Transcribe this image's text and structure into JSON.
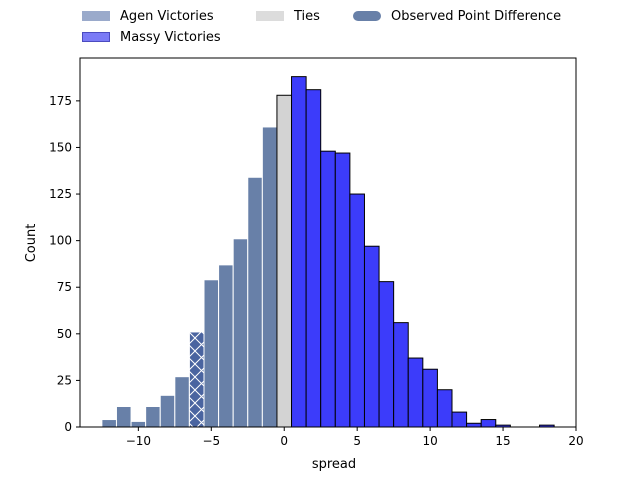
{
  "chart_data": {
    "type": "bar",
    "xlabel": "spread",
    "ylabel": "Count",
    "xlim": [
      -14,
      20
    ],
    "ylim": [
      0,
      198
    ],
    "xticks": [
      -10,
      -5,
      0,
      5,
      10,
      15,
      20
    ],
    "yticks": [
      0,
      25,
      50,
      75,
      100,
      125,
      150,
      175
    ],
    "bin_width": 1,
    "series": [
      {
        "name": "Agen Victories",
        "color": "#6880a8",
        "bins": [
          {
            "x0": -12.5,
            "x1": -11.5,
            "value": 4
          },
          {
            "x0": -11.5,
            "x1": -10.5,
            "value": 11
          },
          {
            "x0": -10.5,
            "x1": -9.5,
            "value": 3
          },
          {
            "x0": -9.5,
            "x1": -8.5,
            "value": 11
          },
          {
            "x0": -8.5,
            "x1": -7.5,
            "value": 17
          },
          {
            "x0": -7.5,
            "x1": -6.5,
            "value": 27
          },
          {
            "x0": -6.5,
            "x1": -5.5,
            "value": 51
          },
          {
            "x0": -5.5,
            "x1": -4.5,
            "value": 79
          },
          {
            "x0": -4.5,
            "x1": -3.5,
            "value": 87
          },
          {
            "x0": -3.5,
            "x1": -2.5,
            "value": 101
          },
          {
            "x0": -2.5,
            "x1": -1.5,
            "value": 134
          },
          {
            "x0": -1.5,
            "x1": -0.5,
            "value": 161
          }
        ]
      },
      {
        "name": "Ties",
        "color": "#d3d3d3",
        "bins": [
          {
            "x0": -0.5,
            "x1": 0.5,
            "value": 178
          }
        ]
      },
      {
        "name": "Massy Victories",
        "color": "#3c3cfa",
        "bins": [
          {
            "x0": 0.5,
            "x1": 1.5,
            "value": 188
          },
          {
            "x0": 1.5,
            "x1": 2.5,
            "value": 181
          },
          {
            "x0": 2.5,
            "x1": 3.5,
            "value": 148
          },
          {
            "x0": 3.5,
            "x1": 4.5,
            "value": 147
          },
          {
            "x0": 4.5,
            "x1": 5.5,
            "value": 125
          },
          {
            "x0": 5.5,
            "x1": 6.5,
            "value": 97
          },
          {
            "x0": 6.5,
            "x1": 7.5,
            "value": 78
          },
          {
            "x0": 7.5,
            "x1": 8.5,
            "value": 56
          },
          {
            "x0": 8.5,
            "x1": 9.5,
            "value": 37
          },
          {
            "x0": 9.5,
            "x1": 10.5,
            "value": 31
          },
          {
            "x0": 10.5,
            "x1": 11.5,
            "value": 20
          },
          {
            "x0": 11.5,
            "x1": 12.5,
            "value": 8
          },
          {
            "x0": 12.5,
            "x1": 13.5,
            "value": 2
          },
          {
            "x0": 13.5,
            "x1": 14.5,
            "value": 4
          },
          {
            "x0": 14.5,
            "x1": 15.5,
            "value": 1
          },
          {
            "x0": 17.5,
            "x1": 18.5,
            "value": 1
          }
        ]
      }
    ],
    "observed": {
      "name": "Observed Point Difference",
      "color": "#4a64a0",
      "x0": -6.5,
      "x1": -5.5,
      "value": 51
    },
    "legend": {
      "placement": "top",
      "entries": [
        {
          "label": "Agen Victories",
          "color": "#9aaacb",
          "border": "#9aaacb"
        },
        {
          "label": "Massy Victories",
          "color": "#7b7bf6",
          "border": "#4b4bc0"
        },
        {
          "label": "Ties",
          "color": "#dcdcdc",
          "border": "#dcdcdc"
        },
        {
          "label": "Observed Point Difference",
          "color": "#6880a8",
          "border": "#6880a8"
        }
      ]
    },
    "grid": false
  }
}
